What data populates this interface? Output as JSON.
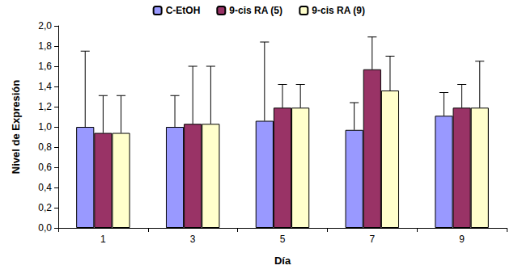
{
  "chart_data": {
    "type": "bar",
    "x_label": "Día",
    "y_label": "Nivel de Expresión",
    "categories": [
      "1",
      "3",
      "5",
      "7",
      "9"
    ],
    "series": [
      {
        "name": "C-EtOH",
        "color": "#9999ff",
        "values": [
          1.0,
          1.0,
          1.06,
          0.97,
          1.11
        ],
        "errors": [
          0.75,
          0.31,
          0.78,
          0.27,
          0.23
        ]
      },
      {
        "name": "9-cis RA (5)",
        "color": "#993366",
        "values": [
          0.94,
          1.03,
          1.19,
          1.57,
          1.19
        ],
        "errors": [
          0.37,
          0.57,
          0.23,
          0.32,
          0.23
        ]
      },
      {
        "name": "9-cis RA (9)",
        "color": "#ffffcc",
        "values": [
          0.94,
          1.03,
          1.19,
          1.36,
          1.19
        ],
        "errors": [
          0.37,
          0.57,
          0.23,
          0.34,
          0.46
        ]
      }
    ],
    "ylim": [
      0,
      2
    ],
    "yticks": [
      {
        "value": 0,
        "label": "0,0"
      },
      {
        "value": 0.2,
        "label": "0,2"
      },
      {
        "value": 0.4,
        "label": "0,4"
      },
      {
        "value": 0.6,
        "label": "0,6"
      },
      {
        "value": 0.8,
        "label": "0,8"
      },
      {
        "value": 1,
        "label": "1,0"
      },
      {
        "value": 1.2,
        "label": "1,2"
      },
      {
        "value": 1.4,
        "label": "1,4"
      },
      {
        "value": 1.6,
        "label": "1,6"
      },
      {
        "value": 1.8,
        "label": "1,8"
      },
      {
        "value": 2,
        "label": "2,0"
      }
    ],
    "grid": false,
    "legend": "top"
  }
}
